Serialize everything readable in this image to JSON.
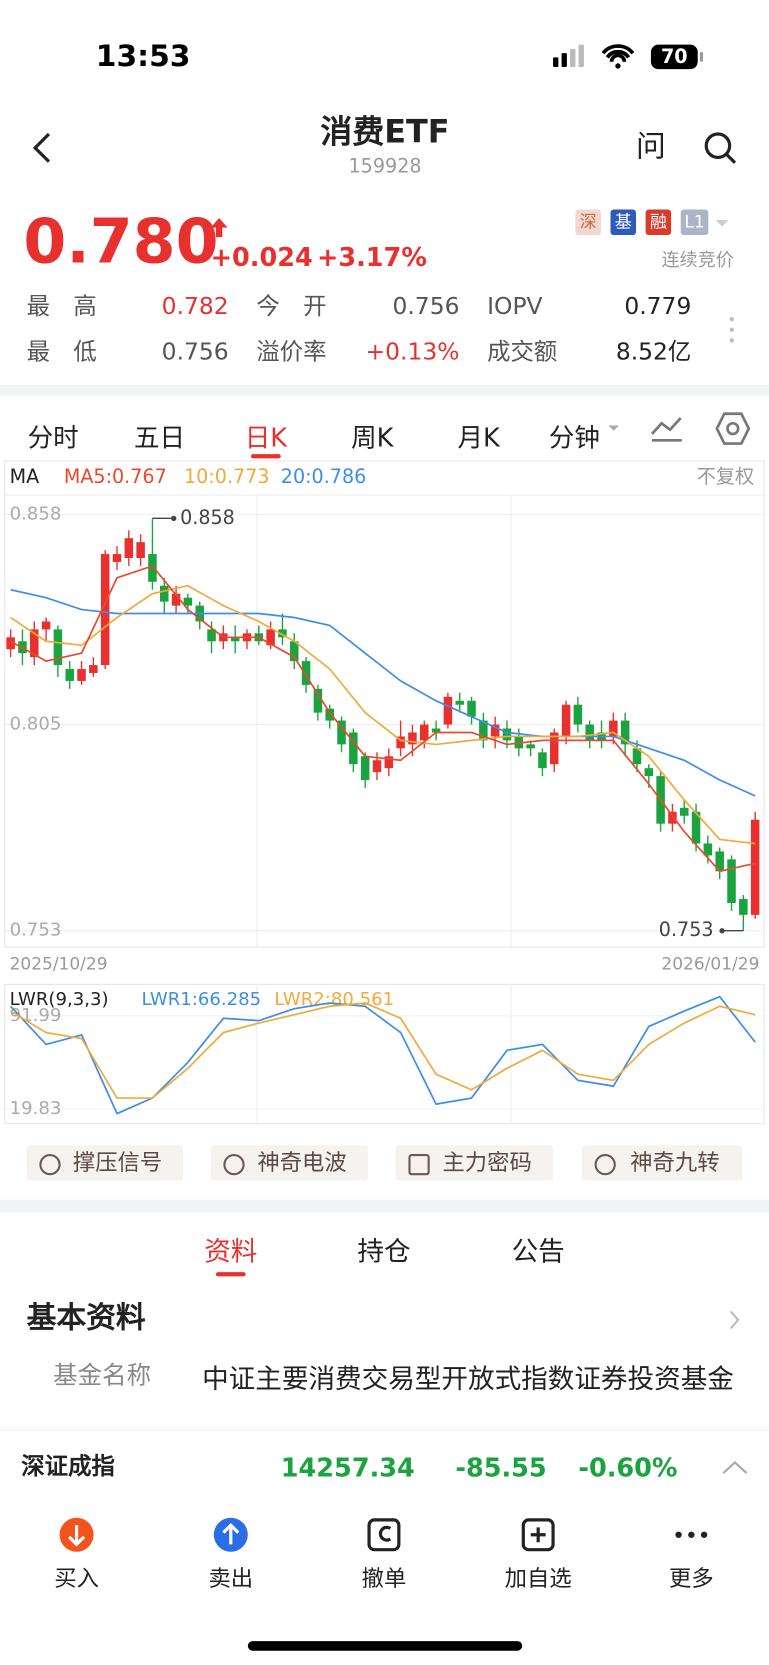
{
  "status_bar": {
    "time": "13:53",
    "battery": "70"
  },
  "header": {
    "title": "消费ETF",
    "code": "159928",
    "ask": "问"
  },
  "quote": {
    "price": "0.780",
    "change": "+0.024",
    "change_pct": "+3.17%",
    "tags": [
      "深",
      "基",
      "融",
      "L1"
    ],
    "auction": "连续竞价",
    "stats": [
      {
        "label": "最高",
        "value": "0.782"
      },
      {
        "label": "今开",
        "value": "0.756"
      },
      {
        "label": "IOPV",
        "value": "0.779"
      },
      {
        "label": "最低",
        "value": "0.756"
      },
      {
        "label": "溢价率",
        "value": "+0.13%"
      },
      {
        "label": "成交额",
        "value": "8.52亿"
      }
    ]
  },
  "tabs": [
    "分时",
    "五日",
    "日K",
    "周K",
    "月K",
    "分钟"
  ],
  "kline": {
    "ma_label": "MA",
    "ma5_label": "MA5:0.767",
    "ma10_label": "10:0.773",
    "ma20_label": "20:0.786",
    "adjust": "不复权",
    "ylim": [
      0.749,
      0.863
    ],
    "yticks": [
      0.858,
      0.805,
      0.753
    ],
    "high_label": "0.858",
    "low_label": "0.753",
    "start_date": "2025/10/29",
    "end_date": "2026/01/29",
    "candles": [
      [
        0.824,
        0.827,
        0.829,
        0.822
      ],
      [
        0.826,
        0.823,
        0.829,
        0.82
      ],
      [
        0.822,
        0.829,
        0.831,
        0.82
      ],
      [
        0.829,
        0.831,
        0.832,
        0.826
      ],
      [
        0.829,
        0.82,
        0.83,
        0.817
      ],
      [
        0.819,
        0.816,
        0.821,
        0.814
      ],
      [
        0.816,
        0.819,
        0.821,
        0.815
      ],
      [
        0.818,
        0.82,
        0.822,
        0.817
      ],
      [
        0.82,
        0.848,
        0.849,
        0.819
      ],
      [
        0.846,
        0.848,
        0.85,
        0.844
      ],
      [
        0.847,
        0.852,
        0.854,
        0.845
      ],
      [
        0.847,
        0.851,
        0.853,
        0.845
      ],
      [
        0.848,
        0.841,
        0.857,
        0.839
      ],
      [
        0.84,
        0.836,
        0.842,
        0.833
      ],
      [
        0.835,
        0.838,
        0.84,
        0.833
      ],
      [
        0.837,
        0.835,
        0.838,
        0.833
      ],
      [
        0.835,
        0.831,
        0.836,
        0.829
      ],
      [
        0.829,
        0.826,
        0.831,
        0.823
      ],
      [
        0.826,
        0.828,
        0.83,
        0.824
      ],
      [
        0.827,
        0.826,
        0.83,
        0.823
      ],
      [
        0.826,
        0.828,
        0.829,
        0.824
      ],
      [
        0.828,
        0.826,
        0.83,
        0.825
      ],
      [
        0.825,
        0.829,
        0.831,
        0.824
      ],
      [
        0.829,
        0.827,
        0.833,
        0.825
      ],
      [
        0.826,
        0.821,
        0.828,
        0.819
      ],
      [
        0.821,
        0.815,
        0.822,
        0.813
      ],
      [
        0.814,
        0.808,
        0.815,
        0.806
      ],
      [
        0.809,
        0.806,
        0.81,
        0.804
      ],
      [
        0.806,
        0.8,
        0.807,
        0.798
      ],
      [
        0.803,
        0.795,
        0.804,
        0.793
      ],
      [
        0.797,
        0.791,
        0.798,
        0.789
      ],
      [
        0.793,
        0.796,
        0.798,
        0.791
      ],
      [
        0.794,
        0.797,
        0.799,
        0.792
      ],
      [
        0.799,
        0.802,
        0.806,
        0.797
      ],
      [
        0.8,
        0.803,
        0.805,
        0.797
      ],
      [
        0.801,
        0.805,
        0.806,
        0.799
      ],
      [
        0.804,
        0.803,
        0.806,
        0.801
      ],
      [
        0.805,
        0.812,
        0.813,
        0.804
      ],
      [
        0.811,
        0.81,
        0.813,
        0.808
      ],
      [
        0.811,
        0.807,
        0.812,
        0.805
      ],
      [
        0.806,
        0.801,
        0.808,
        0.799
      ],
      [
        0.802,
        0.805,
        0.807,
        0.799
      ],
      [
        0.804,
        0.801,
        0.806,
        0.799
      ],
      [
        0.802,
        0.799,
        0.804,
        0.797
      ],
      [
        0.8,
        0.799,
        0.801,
        0.797
      ],
      [
        0.798,
        0.794,
        0.799,
        0.792
      ],
      [
        0.795,
        0.803,
        0.804,
        0.793
      ],
      [
        0.802,
        0.81,
        0.811,
        0.8
      ],
      [
        0.81,
        0.805,
        0.812,
        0.803
      ],
      [
        0.805,
        0.801,
        0.806,
        0.799
      ],
      [
        0.803,
        0.801,
        0.806,
        0.799
      ],
      [
        0.802,
        0.806,
        0.808,
        0.8
      ],
      [
        0.806,
        0.8,
        0.808,
        0.797
      ],
      [
        0.799,
        0.795,
        0.801,
        0.793
      ],
      [
        0.794,
        0.792,
        0.795,
        0.789
      ],
      [
        0.792,
        0.78,
        0.793,
        0.778
      ],
      [
        0.78,
        0.783,
        0.785,
        0.778
      ],
      [
        0.784,
        0.782,
        0.786,
        0.78
      ],
      [
        0.783,
        0.775,
        0.785,
        0.773
      ],
      [
        0.775,
        0.772,
        0.777,
        0.77
      ],
      [
        0.773,
        0.768,
        0.774,
        0.766
      ],
      [
        0.771,
        0.76,
        0.772,
        0.758
      ],
      [
        0.761,
        0.757,
        0.762,
        0.753
      ],
      [
        0.757,
        0.781,
        0.783,
        0.756
      ]
    ],
    "ma": [
      {
        "color": "#3d8ee8",
        "values": [
          0.839,
          0.837,
          0.834,
          0.833,
          0.833,
          0.833,
          0.833,
          0.833,
          0.832,
          0.83,
          0.823,
          0.816,
          0.811,
          0.807,
          0.803,
          0.802,
          0.802,
          0.802,
          0.799,
          0.796,
          0.791,
          0.787
        ]
      },
      {
        "color": "#f2a93b",
        "values": [
          0.832,
          0.826,
          0.825,
          0.832,
          0.838,
          0.84,
          0.835,
          0.831,
          0.826,
          0.819,
          0.808,
          0.801,
          0.8,
          0.801,
          0.802,
          0.802,
          0.802,
          0.803,
          0.797,
          0.786,
          0.776,
          0.775
        ]
      },
      {
        "color": "#e84a2e",
        "values": [
          0.826,
          0.821,
          0.823,
          0.842,
          0.845,
          0.834,
          0.827,
          0.827,
          0.822,
          0.808,
          0.797,
          0.796,
          0.803,
          0.803,
          0.8,
          0.801,
          0.801,
          0.801,
          0.79,
          0.778,
          0.768,
          0.77
        ]
      }
    ]
  },
  "lwr": {
    "label": "LWR(9,3,3)",
    "lwr1_label": "LWR1:66.285",
    "lwr2_label": "LWR2:80.561",
    "ylim": [
      8.7,
      116
    ],
    "yticks": [
      91.99,
      19.83
    ],
    "series": [
      {
        "color": "#3d8ee8",
        "values": [
          99.4,
          69.8,
          77.2,
          16.1,
          28.2,
          55.9,
          90.1,
          88.3,
          97.5,
          102,
          99.4,
          79,
          23.5,
          28.2,
          65.2,
          69.8,
          42,
          37.4,
          83.7,
          95.7,
          106.8,
          71.6
        ]
      },
      {
        "color": "#f2a93b",
        "values": [
          95.7,
          79,
          74.4,
          28.2,
          28.2,
          51.3,
          79,
          86.4,
          92.9,
          99.4,
          102,
          90.1,
          46.7,
          34.6,
          51.3,
          65.2,
          46.7,
          42,
          69.8,
          86.4,
          99.4,
          92.9
        ]
      }
    ]
  },
  "tools": [
    "撑压信号",
    "神奇电波",
    "主力密码",
    "神奇九转"
  ],
  "info_tabs": [
    "资料",
    "持仓",
    "公告"
  ],
  "section": {
    "title": "基本资料",
    "fund_name_label": "基金名称",
    "fund_name": "中证主要消费交易型开放式指数证券投资基金"
  },
  "index_bar": {
    "name": "深证成指",
    "value": "14257.34",
    "change": "-85.55",
    "pct": "-0.60%"
  },
  "bottom_nav": [
    "买入",
    "卖出",
    "撤单",
    "加自选",
    "更多"
  ]
}
